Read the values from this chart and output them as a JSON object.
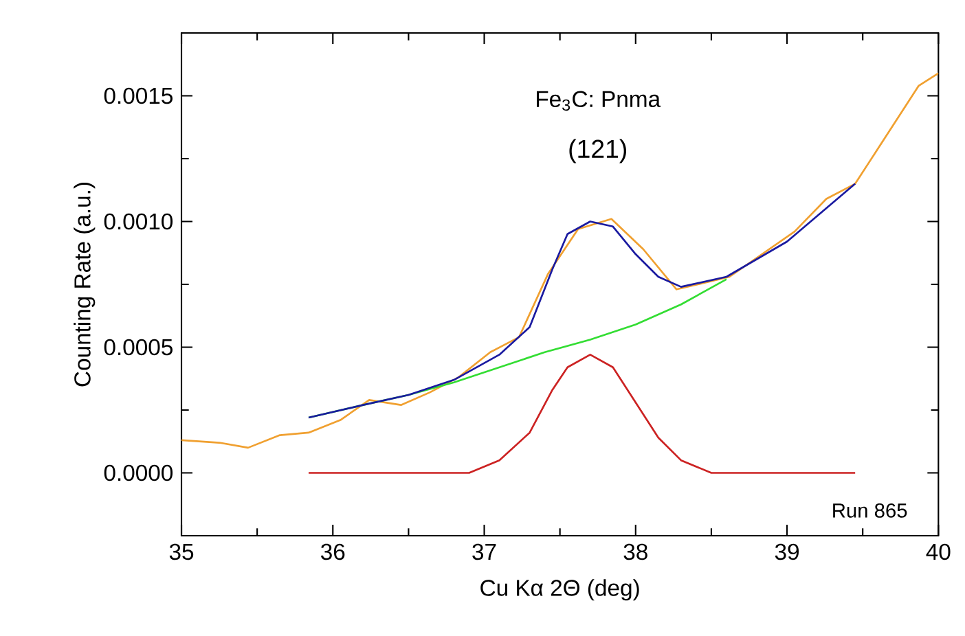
{
  "chart_data": {
    "type": "line",
    "xlabel": "Cu Kα 2Θ (deg)",
    "ylabel": "Counting Rate (a.u.)",
    "xlim": [
      35,
      40
    ],
    "xticks": [
      35,
      36,
      37,
      38,
      39,
      40
    ],
    "ylim": [
      -0.00025,
      0.00175
    ],
    "yticks": [
      {
        "value": 0,
        "label": "0.0000"
      },
      {
        "value": 0.0005,
        "label": "0.0005"
      },
      {
        "value": 0.001,
        "label": "0.0010"
      },
      {
        "value": 0.0015,
        "label": "0.0015"
      }
    ],
    "grid": false,
    "marker": "none",
    "line_style": "solid",
    "series": [
      {
        "color": "#f0a030",
        "x": [
          35.0,
          35.25,
          35.44,
          35.65,
          35.84,
          36.05,
          36.24,
          36.45,
          36.64,
          36.83,
          37.04,
          37.23,
          37.42,
          37.62,
          37.84,
          38.05,
          38.27,
          38.62,
          39.05,
          39.26,
          39.45,
          39.87,
          40.0
        ],
        "values": [
          0.00013,
          0.00012,
          0.0001,
          0.00015,
          0.00016,
          0.00021,
          0.00029,
          0.00027,
          0.00032,
          0.00038,
          0.00048,
          0.00054,
          0.00079,
          0.00097,
          0.00101,
          0.00089,
          0.00073,
          0.00078,
          0.00096,
          0.00109,
          0.00115,
          0.00154,
          0.00159
        ]
      },
      {
        "color": "#33dd33",
        "x": [
          35.84,
          36.2,
          36.5,
          36.8,
          37.1,
          37.4,
          37.7,
          38.0,
          38.3,
          38.6
        ],
        "values": [
          0.00022,
          0.00027,
          0.00031,
          0.00036,
          0.00042,
          0.00048,
          0.00053,
          0.00059,
          0.00067,
          0.00077
        ]
      },
      {
        "color": "#cc2222",
        "x": [
          35.84,
          36.6,
          36.9,
          37.1,
          37.3,
          37.45,
          37.55,
          37.7,
          37.85,
          38.0,
          38.15,
          38.3,
          38.5,
          38.8,
          39.45
        ],
        "values": [
          0,
          0,
          0,
          5e-05,
          0.00016,
          0.00033,
          0.00042,
          0.00047,
          0.00042,
          0.00028,
          0.00014,
          5e-05,
          0,
          0,
          0
        ]
      },
      {
        "color": "#1a1aa0",
        "x": [
          35.84,
          36.2,
          36.5,
          36.8,
          37.1,
          37.3,
          37.45,
          37.55,
          37.7,
          37.85,
          38.0,
          38.15,
          38.3,
          38.6,
          39.0,
          39.45
        ],
        "values": [
          0.00022,
          0.00027,
          0.00031,
          0.00037,
          0.00047,
          0.00058,
          0.00081,
          0.00095,
          0.001,
          0.00098,
          0.00087,
          0.00078,
          0.00074,
          0.00078,
          0.00092,
          0.00115
        ]
      }
    ],
    "annotations": [
      "Fe$_{3}$C: Pnma",
      "(121)",
      "Run 865"
    ]
  }
}
